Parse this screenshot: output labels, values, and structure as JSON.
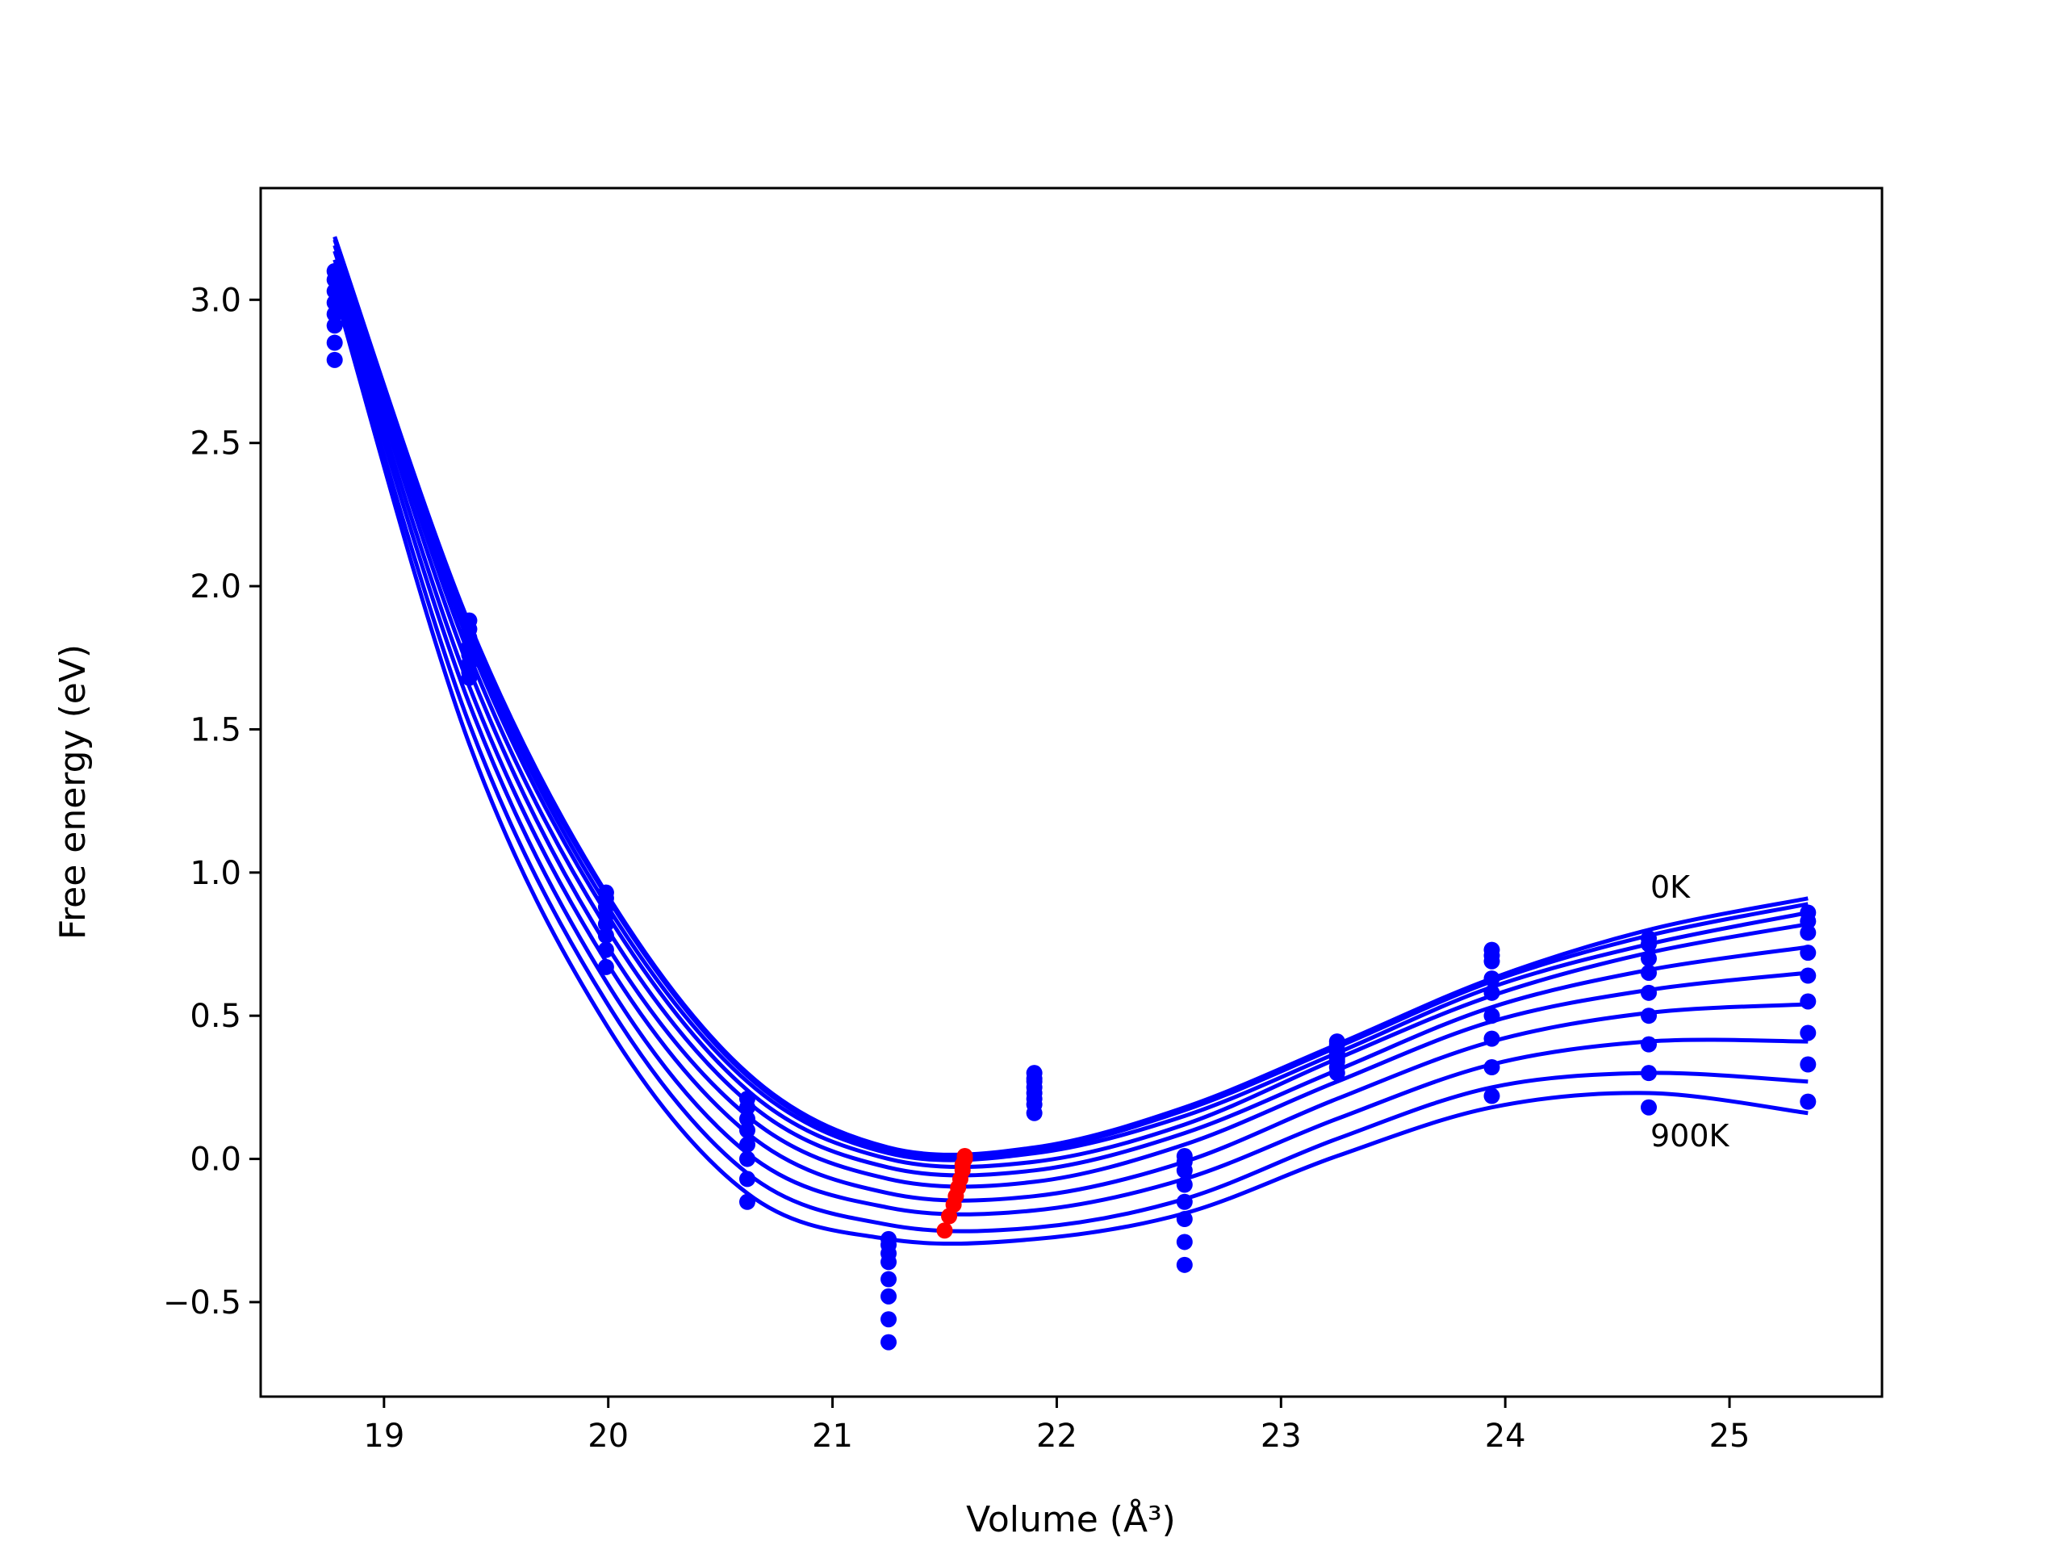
{
  "chart_data": {
    "type": "scatter",
    "xlabel": "Volume (Å³)",
    "ylabel": "Free energy (eV)",
    "xlim": [
      18.45,
      25.68
    ],
    "ylim": [
      -0.83,
      3.39
    ],
    "xticks": [
      "19",
      "20",
      "21",
      "22",
      "23",
      "24",
      "25"
    ],
    "yticks": [
      "−0.5",
      "0.0",
      "0.5",
      "1.0",
      "1.5",
      "2.0",
      "2.5",
      "3.0"
    ],
    "grid": false,
    "legend": "none",
    "annotations": [
      {
        "text": "0K",
        "x": 24.65,
        "y": 0.93
      },
      {
        "text": "900K",
        "x": 24.65,
        "y": 0.07
      }
    ],
    "colors": {
      "curves": "#0000ff",
      "points": "#0000ff",
      "minima": "#ff0000"
    },
    "volumes": [
      18.78,
      19.38,
      19.99,
      20.62,
      21.25,
      21.9,
      22.57,
      23.25,
      23.94,
      24.64,
      25.35
    ],
    "points_by_volume": [
      [
        3.1,
        3.07,
        3.03,
        2.99,
        2.95,
        2.91,
        2.85,
        2.79
      ],
      [
        1.88,
        1.85,
        1.82,
        1.79,
        1.76,
        1.73,
        1.7,
        1.68
      ],
      [
        0.93,
        0.91,
        0.88,
        0.85,
        0.82,
        0.78,
        0.73,
        0.67
      ],
      [
        0.21,
        0.18,
        0.14,
        0.1,
        0.05,
        0.0,
        -0.07,
        -0.15
      ],
      [
        -0.28,
        -0.3,
        -0.33,
        -0.36,
        -0.42,
        -0.48,
        -0.56,
        -0.64
      ],
      [
        0.3,
        0.28,
        0.27,
        0.25,
        0.23,
        0.21,
        0.19,
        0.16
      ],
      [
        0.01,
        -0.01,
        -0.04,
        -0.09,
        -0.15,
        -0.21,
        -0.29,
        -0.37
      ],
      [
        0.41,
        0.4,
        0.38,
        0.37,
        0.35,
        0.34,
        0.32,
        0.3
      ],
      [
        0.73,
        0.71,
        0.69,
        0.63,
        0.58,
        0.5,
        0.42,
        0.32,
        0.22
      ],
      [
        0.77,
        0.75,
        0.7,
        0.65,
        0.58,
        0.5,
        0.4,
        0.3,
        0.18
      ],
      [
        0.86,
        0.83,
        0.79,
        0.72,
        0.64,
        0.55,
        0.44,
        0.33,
        0.2
      ]
    ],
    "series": [
      {
        "x": [
          18.78,
          19.38,
          19.99,
          20.62,
          21.25,
          21.9,
          22.57,
          23.25,
          23.94,
          24.64,
          25.35
        ],
        "y": [
          3.22,
          1.87,
          0.93,
          0.3,
          0.04,
          0.04,
          0.18,
          0.4,
          0.63,
          0.8,
          0.91
        ]
      },
      {
        "x": [
          18.78,
          19.38,
          19.99,
          20.62,
          21.25,
          21.9,
          22.57,
          23.25,
          23.94,
          24.64,
          25.35
        ],
        "y": [
          3.22,
          1.85,
          0.92,
          0.29,
          0.03,
          0.03,
          0.17,
          0.39,
          0.62,
          0.78,
          0.89
        ]
      },
      {
        "x": [
          18.78,
          19.38,
          19.99,
          20.62,
          21.25,
          21.9,
          22.57,
          23.25,
          23.94,
          24.64,
          25.35
        ],
        "y": [
          3.21,
          1.83,
          0.89,
          0.27,
          0.02,
          0.02,
          0.15,
          0.37,
          0.6,
          0.75,
          0.86
        ]
      },
      {
        "x": [
          18.78,
          19.38,
          19.99,
          20.62,
          21.25,
          21.9,
          22.57,
          23.25,
          23.94,
          24.64,
          25.35
        ],
        "y": [
          3.19,
          1.8,
          0.86,
          0.24,
          0.0,
          -0.01,
          0.12,
          0.35,
          0.57,
          0.72,
          0.82
        ]
      },
      {
        "x": [
          18.78,
          19.38,
          19.99,
          20.62,
          21.25,
          21.9,
          22.57,
          23.25,
          23.94,
          24.64,
          25.35
        ],
        "y": [
          3.17,
          1.76,
          0.81,
          0.2,
          -0.03,
          -0.04,
          0.09,
          0.31,
          0.53,
          0.66,
          0.74
        ]
      },
      {
        "x": [
          18.78,
          19.38,
          19.99,
          20.62,
          21.25,
          21.9,
          22.57,
          23.25,
          23.94,
          24.64,
          25.35
        ],
        "y": [
          3.14,
          1.71,
          0.75,
          0.15,
          -0.07,
          -0.08,
          0.05,
          0.27,
          0.48,
          0.59,
          0.65
        ]
      },
      {
        "x": [
          18.78,
          19.38,
          19.99,
          20.62,
          21.25,
          21.9,
          22.57,
          23.25,
          23.94,
          24.64,
          25.35
        ],
        "y": [
          3.11,
          1.65,
          0.69,
          0.09,
          -0.12,
          -0.13,
          -0.01,
          0.21,
          0.41,
          0.51,
          0.54
        ]
      },
      {
        "x": [
          18.78,
          19.38,
          19.99,
          20.62,
          21.25,
          21.9,
          22.57,
          23.25,
          23.94,
          24.64,
          25.35
        ],
        "y": [
          3.08,
          1.59,
          0.62,
          0.02,
          -0.17,
          -0.18,
          -0.07,
          0.14,
          0.33,
          0.41,
          0.41
        ]
      },
      {
        "x": [
          18.78,
          19.38,
          19.99,
          20.62,
          21.25,
          21.9,
          22.57,
          23.25,
          23.94,
          24.64,
          25.35
        ],
        "y": [
          3.05,
          1.52,
          0.55,
          -0.05,
          -0.23,
          -0.24,
          -0.14,
          0.07,
          0.25,
          0.3,
          0.27
        ]
      },
      {
        "x": [
          18.78,
          19.38,
          19.99,
          20.62,
          21.25,
          21.9,
          22.57,
          23.25,
          23.94,
          24.64,
          25.35
        ],
        "y": [
          3.03,
          1.45,
          0.47,
          -0.12,
          -0.28,
          -0.28,
          -0.19,
          0.01,
          0.18,
          0.23,
          0.16
        ]
      }
    ],
    "minima": {
      "x": [
        21.59,
        21.59,
        21.58,
        21.58,
        21.57,
        21.56,
        21.55,
        21.54,
        21.52,
        21.5
      ],
      "y": [
        0.01,
        0.0,
        -0.02,
        -0.04,
        -0.07,
        -0.1,
        -0.13,
        -0.16,
        -0.2,
        -0.25
      ]
    }
  }
}
